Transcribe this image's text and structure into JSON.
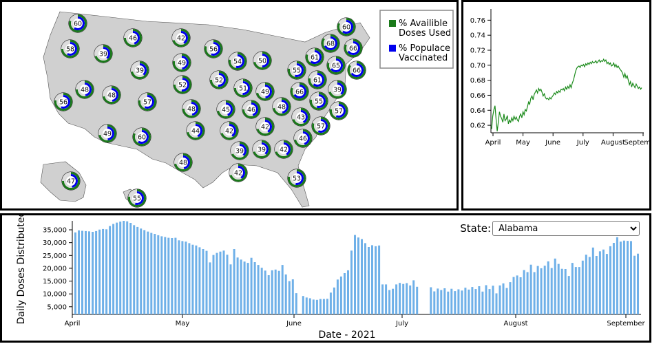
{
  "colors": {
    "used": "#1a7a1a",
    "vaccinated": "#0000ee",
    "ring_bg": "#dcdcdc",
    "land": "#d0d0d0",
    "bar": "#6fb0e8",
    "line": "#1a8a1a"
  },
  "legend": {
    "used": "% Availible Doses Used",
    "used_line1": "% Availible",
    "used_line2": "Doses Used",
    "vaccinated_line1": "% Populace",
    "vaccinated_line2": "Vaccinated"
  },
  "state_select": {
    "label": "State:",
    "value": "Alabama"
  },
  "chart_data": [
    {
      "type": "map-donuts",
      "values": [
        60,
        46,
        42,
        56,
        58,
        39,
        49,
        39,
        52,
        54,
        50,
        60,
        68,
        66,
        61,
        55,
        65,
        66,
        61,
        39,
        48,
        48,
        57,
        48,
        51,
        49,
        52,
        66,
        56,
        45,
        46,
        55,
        48,
        43,
        57,
        57,
        42,
        44,
        42,
        49,
        60,
        46,
        39,
        39,
        42,
        48,
        42,
        47,
        55,
        53
      ],
      "used_pct": [
        0.8,
        0.75,
        0.7,
        0.8,
        0.75,
        0.7,
        0.78,
        0.72,
        0.75,
        0.78,
        0.72,
        0.82,
        0.85,
        0.82,
        0.8,
        0.78,
        0.8,
        0.85,
        0.78,
        0.7,
        0.75,
        0.72,
        0.78,
        0.75,
        0.75,
        0.72,
        0.75,
        0.82,
        0.78,
        0.72,
        0.75,
        0.78,
        0.72,
        0.7,
        0.78,
        0.8,
        0.7,
        0.72,
        0.7,
        0.72,
        0.82,
        0.72,
        0.68,
        0.7,
        0.7,
        0.72,
        0.7,
        0.75,
        0.78,
        0.78
      ]
    },
    {
      "type": "line",
      "x_ticks": [
        "April",
        "May",
        "June",
        "July",
        "August",
        "September"
      ],
      "y_ticks": [
        "0.62",
        "0.64",
        "0.66",
        "0.68",
        "0.70",
        "0.72",
        "0.74",
        "0.76"
      ],
      "ylim": [
        0.61,
        0.775
      ],
      "values": [
        0.615,
        0.632,
        0.641,
        0.646,
        0.628,
        0.612,
        0.625,
        0.638,
        0.632,
        0.629,
        0.624,
        0.635,
        0.626,
        0.628,
        0.633,
        0.622,
        0.627,
        0.624,
        0.63,
        0.626,
        0.632,
        0.628,
        0.631,
        0.627,
        0.625,
        0.632,
        0.635,
        0.63,
        0.638,
        0.634,
        0.641,
        0.639,
        0.645,
        0.651,
        0.648,
        0.656,
        0.659,
        0.654,
        0.661,
        0.664,
        0.667,
        0.663,
        0.669,
        0.666,
        0.668,
        0.664,
        0.659,
        0.662,
        0.657,
        0.655,
        0.656,
        0.654,
        0.657,
        0.655,
        0.658,
        0.66,
        0.663,
        0.661,
        0.665,
        0.663,
        0.666,
        0.664,
        0.668,
        0.667,
        0.669,
        0.666,
        0.671,
        0.668,
        0.672,
        0.669,
        0.674,
        0.67,
        0.676,
        0.68,
        0.686,
        0.692,
        0.696,
        0.698,
        0.699,
        0.697,
        0.7,
        0.699,
        0.701,
        0.698,
        0.702,
        0.7,
        0.703,
        0.701,
        0.704,
        0.702,
        0.705,
        0.703,
        0.704,
        0.706,
        0.703,
        0.705,
        0.707,
        0.704,
        0.706,
        0.705,
        0.708,
        0.705,
        0.707,
        0.702,
        0.704,
        0.701,
        0.703,
        0.699,
        0.7,
        0.703,
        0.698,
        0.701,
        0.697,
        0.699,
        0.696,
        0.694,
        0.692,
        0.689,
        0.684,
        0.689,
        0.683,
        0.686,
        0.68,
        0.674,
        0.678,
        0.671,
        0.676,
        0.673,
        0.67,
        0.675,
        0.672,
        0.669,
        0.671,
        0.668,
        0.67
      ]
    },
    {
      "type": "bar",
      "xlabel": "Date - 2021",
      "ylabel": "Daily Doses Distributed",
      "x_ticks": [
        "April",
        "May",
        "June",
        "July",
        "August",
        "September"
      ],
      "y_ticks": [
        "5,000",
        "10,000",
        "15,000",
        "20,000",
        "25,000",
        "30,000",
        "35,000"
      ],
      "ylim": [
        2000,
        38500
      ],
      "values": [
        34000,
        34800,
        34600,
        34500,
        34400,
        34200,
        34500,
        35100,
        35300,
        35200,
        36500,
        37300,
        37800,
        38200,
        38500,
        38300,
        37700,
        36800,
        36100,
        35500,
        34900,
        34300,
        33800,
        33400,
        32900,
        32500,
        32200,
        31900,
        31800,
        31900,
        30900,
        30600,
        30400,
        29800,
        29200,
        28900,
        28200,
        27500,
        26800,
        22300,
        25200,
        26000,
        26500,
        26900,
        25300,
        21500,
        27500,
        24200,
        23400,
        22600,
        22100,
        24100,
        22400,
        21300,
        20200,
        19100,
        17300,
        19200,
        19500,
        19000,
        21300,
        17600,
        15000,
        15700,
        10300,
        0,
        9200,
        8600,
        8300,
        7800,
        7700,
        8000,
        8000,
        8100,
        10500,
        12500,
        15600,
        16800,
        18100,
        19200,
        26900,
        33000,
        32000,
        31400,
        29800,
        28300,
        29000,
        28600,
        28900,
        13700,
        13700,
        11500,
        12000,
        13700,
        14300,
        13900,
        14200,
        13300,
        15300,
        12800,
        0,
        0,
        0,
        12600,
        11000,
        12100,
        11500,
        12200,
        10900,
        12000,
        11100,
        11800,
        11300,
        12400,
        11700,
        12700,
        11900,
        13000,
        10900,
        13400,
        11900,
        13200,
        10200,
        13300,
        14100,
        12300,
        14600,
        16600,
        17200,
        16500,
        19300,
        18500,
        21400,
        18500,
        20900,
        20000,
        21000,
        22700,
        20100,
        23800,
        21700,
        19800,
        19700,
        17000,
        22100,
        20500,
        20500,
        23000,
        25300,
        24400,
        28100,
        24800,
        26600,
        27300,
        25600,
        28600,
        29900,
        32100,
        30400,
        30800,
        30700,
        30600,
        24900,
        25700
      ]
    }
  ]
}
